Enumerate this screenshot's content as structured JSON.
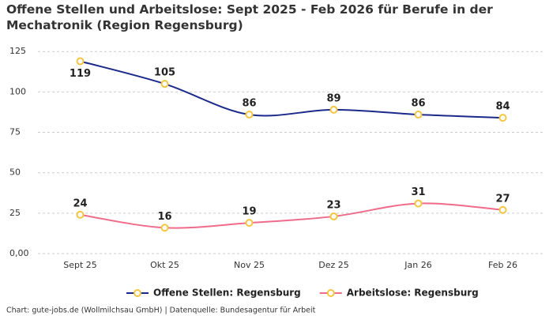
{
  "chart_data": {
    "type": "line",
    "title": "Offene Stellen und Arbeitslose: Sept 2025 - Feb 2026 für Berufe in der Mechatronik (Region Regensburg)",
    "categories": [
      "Sept 25",
      "Okt 25",
      "Nov 25",
      "Dez 25",
      "Jan 26",
      "Feb 26"
    ],
    "series": [
      {
        "name": "Offene Stellen: Regensburg",
        "color": "#1b2a8a",
        "values": [
          119,
          105,
          86,
          89,
          86,
          84
        ]
      },
      {
        "name": "Arbeitslose: Regensburg",
        "color": "#f06b8a",
        "values": [
          24,
          16,
          19,
          23,
          31,
          27
        ]
      }
    ],
    "marker_color": "#f5c542",
    "ylim": [
      0,
      130
    ],
    "yticks": [
      {
        "value": 0,
        "label": "0,00"
      },
      25,
      50,
      75,
      100,
      125
    ],
    "grid": true,
    "legend": "bottom",
    "source": "Chart: gute-jobs.de (Wollmilchsau GmbH) | Datenquelle: Bundesagentur für Arbeit"
  }
}
